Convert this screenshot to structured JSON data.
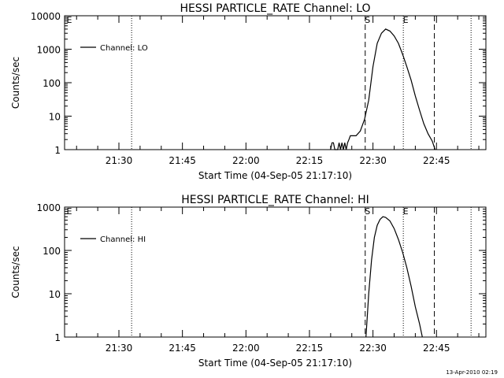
{
  "footer": {
    "timestamp": "13-Apr-2010 02:19"
  },
  "chart_data": [
    {
      "type": "line",
      "title": "HESSI PARTICLE_RATE Channel: LO",
      "xlabel": "Start Time (04-Sep-05 21:17:10)",
      "ylabel": "Counts/sec",
      "yscale": "log",
      "ylim": [
        1,
        10000
      ],
      "xlim": [
        "21:17:10",
        "22:56:40"
      ],
      "xticks": [
        "21:30",
        "21:45",
        "22:00",
        "22:15",
        "22:30",
        "22:45"
      ],
      "yticks": [
        "1",
        "10",
        "100",
        "1000",
        "10000"
      ],
      "legend": {
        "position": "top-left",
        "entries": [
          "Channel: LO"
        ]
      },
      "vlines": [
        {
          "x": "21:33:00",
          "style": "dotted",
          "label": ""
        },
        {
          "x": "22:28:10",
          "style": "dashed",
          "label": "S"
        },
        {
          "x": "22:37:10",
          "style": "dotted",
          "label": "E"
        },
        {
          "x": "22:44:30",
          "style": "dashed",
          "label": ""
        },
        {
          "x": "22:53:10",
          "style": "dotted",
          "label": ""
        }
      ],
      "corner_mark": "E",
      "series": [
        {
          "name": "Channel: LO",
          "points": [
            [
              "22:20:00",
              1
            ],
            [
              "22:20:20",
              1.6
            ],
            [
              "22:20:40",
              1.6
            ],
            [
              "22:21:00",
              1
            ],
            [
              "22:21:40",
              1
            ],
            [
              "22:22:00",
              1.6
            ],
            [
              "22:22:20",
              1
            ],
            [
              "22:22:40",
              1.6
            ],
            [
              "22:23:00",
              1
            ],
            [
              "22:23:20",
              1.6
            ],
            [
              "22:23:40",
              1
            ],
            [
              "22:24:00",
              1.6
            ],
            [
              "22:24:20",
              2
            ],
            [
              "22:24:40",
              2.6
            ],
            [
              "22:26:00",
              2.6
            ],
            [
              "22:27:00",
              3.6
            ],
            [
              "22:28:00",
              8
            ],
            [
              "22:29:00",
              30
            ],
            [
              "22:30:00",
              300
            ],
            [
              "22:31:00",
              1500
            ],
            [
              "22:32:00",
              3000
            ],
            [
              "22:33:00",
              4000
            ],
            [
              "22:34:00",
              3500
            ],
            [
              "22:35:00",
              2500
            ],
            [
              "22:36:00",
              1500
            ],
            [
              "22:37:00",
              700
            ],
            [
              "22:38:00",
              300
            ],
            [
              "22:39:00",
              120
            ],
            [
              "22:40:00",
              40
            ],
            [
              "22:41:00",
              15
            ],
            [
              "22:42:00",
              6
            ],
            [
              "22:43:00",
              3
            ],
            [
              "22:44:00",
              1.8
            ],
            [
              "22:44:40",
              1
            ]
          ]
        }
      ]
    },
    {
      "type": "line",
      "title": "HESSI PARTICLE_RATE Channel: HI",
      "xlabel": "Start Time (04-Sep-05 21:17:10)",
      "ylabel": "Counts/sec",
      "yscale": "log",
      "ylim": [
        1,
        1000
      ],
      "xlim": [
        "21:17:10",
        "22:56:40"
      ],
      "xticks": [
        "21:30",
        "21:45",
        "22:00",
        "22:15",
        "22:30",
        "22:45"
      ],
      "yticks": [
        "1",
        "10",
        "100",
        "1000"
      ],
      "legend": {
        "position": "top-left",
        "entries": [
          "Channel: HI"
        ]
      },
      "vlines": [
        {
          "x": "21:33:00",
          "style": "dotted",
          "label": ""
        },
        {
          "x": "22:28:10",
          "style": "dashed",
          "label": "S"
        },
        {
          "x": "22:37:10",
          "style": "dotted",
          "label": "E"
        },
        {
          "x": "22:44:30",
          "style": "dashed",
          "label": ""
        },
        {
          "x": "22:53:10",
          "style": "dotted",
          "label": ""
        }
      ],
      "corner_mark": "E",
      "series": [
        {
          "name": "Channel: HI",
          "points": [
            [
              "22:28:20",
              1
            ],
            [
              "22:28:40",
              3
            ],
            [
              "22:29:00",
              10
            ],
            [
              "22:29:40",
              60
            ],
            [
              "22:30:20",
              200
            ],
            [
              "22:31:00",
              380
            ],
            [
              "22:31:40",
              520
            ],
            [
              "22:32:20",
              600
            ],
            [
              "22:33:00",
              580
            ],
            [
              "22:34:00",
              480
            ],
            [
              "22:35:00",
              320
            ],
            [
              "22:36:00",
              180
            ],
            [
              "22:37:00",
              90
            ],
            [
              "22:38:00",
              40
            ],
            [
              "22:39:00",
              15
            ],
            [
              "22:40:00",
              5
            ],
            [
              "22:41:00",
              2
            ],
            [
              "22:41:40",
              1
            ]
          ]
        }
      ]
    }
  ]
}
